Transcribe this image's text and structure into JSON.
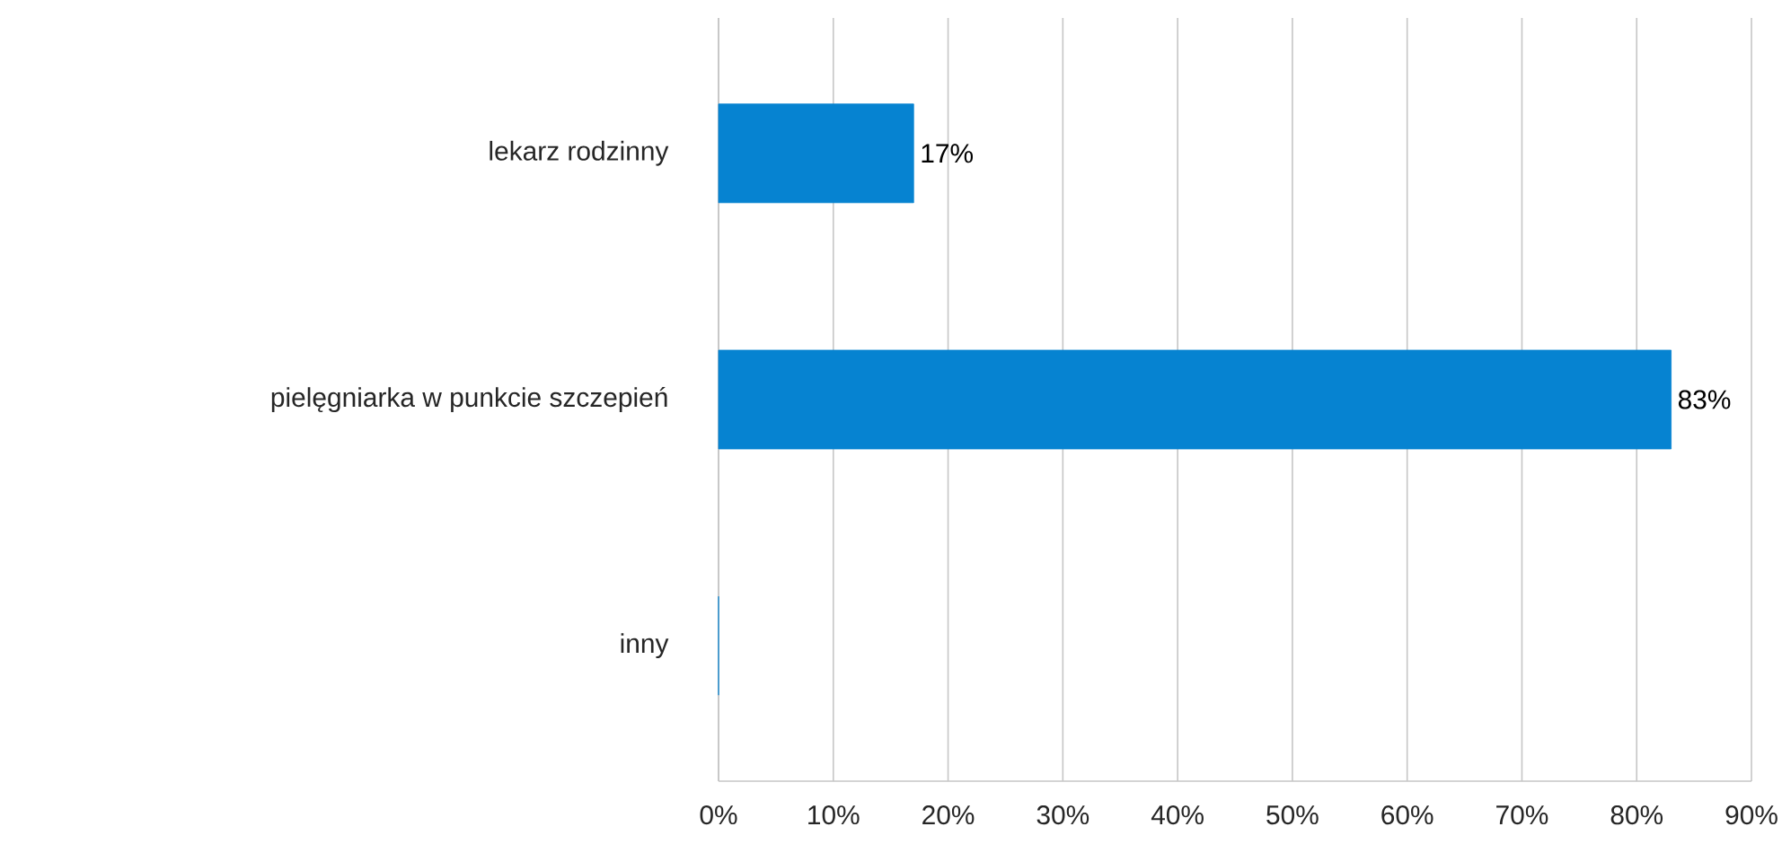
{
  "chart_data": {
    "type": "bar",
    "orientation": "horizontal",
    "categories": [
      "lekarz rodzinny",
      "pielęgniarka w punkcie szczepień",
      "inny"
    ],
    "values": [
      17,
      83,
      0
    ],
    "color": "#0683d1",
    "value_labels": [
      "17%",
      "83%",
      null
    ],
    "xlim": [
      0,
      90
    ],
    "xticks": [
      {
        "value": 0,
        "label": "0%"
      },
      {
        "value": 10,
        "label": "10%"
      },
      {
        "value": 20,
        "label": "20%"
      },
      {
        "value": 30,
        "label": "30%"
      },
      {
        "value": 40,
        "label": "40%"
      },
      {
        "value": 50,
        "label": "50%"
      },
      {
        "value": 60,
        "label": "60%"
      },
      {
        "value": 70,
        "label": "70%"
      },
      {
        "value": 80,
        "label": "80%"
      },
      {
        "value": 90,
        "label": "90%"
      }
    ],
    "grid": "x"
  }
}
